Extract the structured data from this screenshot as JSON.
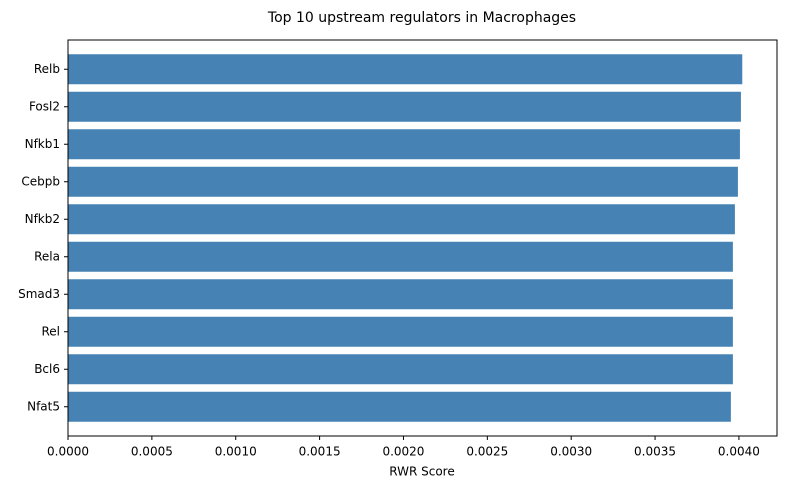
{
  "chart_data": {
    "type": "barh",
    "title": "Top 10 upstream regulators in Macrophages",
    "xlabel": "RWR Score",
    "categories": [
      "Relb",
      "Fosl2",
      "Nfkb1",
      "Cebpb",
      "Nfkb2",
      "Rela",
      "Smad3",
      "Rel",
      "Bcl6",
      "Nfat5"
    ],
    "values": [
      0.00402,
      0.004012,
      0.004006,
      0.003994,
      0.003976,
      0.003964,
      0.003964,
      0.003964,
      0.003964,
      0.003952
    ],
    "color": "#4682b4",
    "xlim": [
      0,
      0.004227
    ],
    "xticks": [
      {
        "value": 0,
        "label": "0.0000"
      },
      {
        "value": 0.0005,
        "label": "0.0005"
      },
      {
        "value": 0.001,
        "label": "0.0010"
      },
      {
        "value": 0.0015,
        "label": "0.0015"
      },
      {
        "value": 0.002,
        "label": "0.0020"
      },
      {
        "value": 0.0025,
        "label": "0.0025"
      },
      {
        "value": 0.003,
        "label": "0.0030"
      },
      {
        "value": 0.0035,
        "label": "0.0035"
      },
      {
        "value": 0.004,
        "label": "0.0040"
      }
    ],
    "grid": false
  }
}
